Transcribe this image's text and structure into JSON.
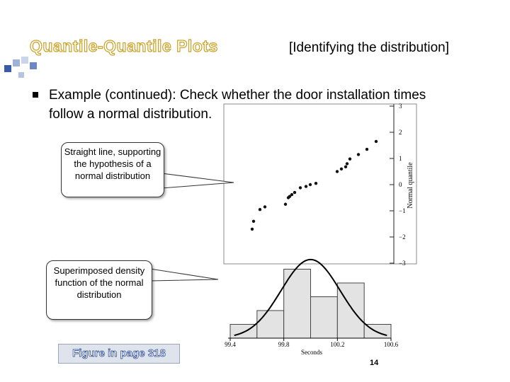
{
  "slide": {
    "title": "Quantile-Quantile Plots",
    "subtitle": "[Identifying the distribution]",
    "bullet_text": "Example (continued): Check whether the door installation times follow a normal distribution.",
    "callout_top": "Straight line, supporting the hypothesis of a normal distribution",
    "callout_bottom": "Superimposed density function of the normal distribution",
    "figure_link": "Figure in page 318",
    "page_number": "14"
  },
  "colors": {
    "title_outline": "#c9a227",
    "figure_link_text": "#1f3f8f"
  },
  "chart_data": [
    {
      "type": "scatter",
      "ylabel": "Normal quantile",
      "yticks": [
        "3",
        "2",
        "1",
        "0",
        "−1",
        "−2",
        "−3"
      ],
      "ylim": [
        -3,
        3
      ],
      "points_note": "",
      "y": [
        -1.7,
        -1.4,
        -0.95,
        -0.85,
        -0.75,
        -0.5,
        -0.45,
        -0.38,
        -0.3,
        -0.12,
        -0.07,
        0.0,
        0.05,
        0.5,
        0.6,
        0.68,
        0.8,
        0.98,
        1.15,
        1.35,
        1.65
      ]
    },
    {
      "type": "bar",
      "xlabel": "Seconds",
      "xticks": [
        "99.4",
        "99.8",
        "100.2",
        "100.6"
      ],
      "xlim": [
        99.4,
        100.6
      ],
      "bins": [
        [
          99.4,
          99.6
        ],
        [
          99.6,
          99.8
        ],
        [
          99.8,
          100.0
        ],
        [
          100.0,
          100.2
        ],
        [
          100.2,
          100.4
        ],
        [
          100.4,
          100.6
        ]
      ],
      "values": [
        1,
        2,
        5,
        3,
        4,
        1
      ],
      "curve": "normal density overlay"
    }
  ]
}
